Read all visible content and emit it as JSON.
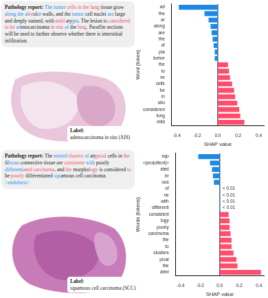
{
  "panels": [
    {
      "report": {
        "heading": "Pathology report:",
        "segments": [
          {
            "text": "The",
            "color": "blue"
          },
          {
            "text": " "
          },
          {
            "text": "tumor",
            "color": "blue"
          },
          {
            "text": " "
          },
          {
            "text": "cells",
            "color": "red"
          },
          {
            "text": " "
          },
          {
            "text": "in",
            "color": "red"
          },
          {
            "text": " "
          },
          {
            "text": "the",
            "color": "red"
          },
          {
            "text": " "
          },
          {
            "text": "lung",
            "color": "red"
          },
          {
            "text": " tissue grow "
          },
          {
            "text": "along",
            "color": "blue"
          },
          {
            "text": " "
          },
          {
            "text": "the",
            "color": "blue"
          },
          {
            "text": " "
          },
          {
            "text": "al",
            "color": "blue"
          },
          {
            "text": "ve",
            "color": "red"
          },
          {
            "text": "ol"
          },
          {
            "text": "ar",
            "color": "blue"
          },
          {
            "text": " walls, and the "
          },
          {
            "text": "tumor",
            "color": "blue"
          },
          {
            "text": " cell nuclei "
          },
          {
            "text": "are",
            "color": "blue"
          },
          {
            "text": " large and deeply stained, with "
          },
          {
            "text": "mild",
            "color": "red"
          },
          {
            "text": " aty"
          },
          {
            "text": "pia",
            "color": "blue"
          },
          {
            "text": ". The lesion is "
          },
          {
            "text": "considered",
            "color": "red"
          },
          {
            "text": " "
          },
          {
            "text": "to",
            "color": "red"
          },
          {
            "text": " "
          },
          {
            "text": "be",
            "color": "red"
          },
          {
            "text": " "
          },
          {
            "text": "ad",
            "color": "blue"
          },
          {
            "text": "enocarcinoma "
          },
          {
            "text": "in",
            "color": "red"
          },
          {
            "text": " "
          },
          {
            "text": "situ",
            "color": "red"
          },
          {
            "text": " "
          },
          {
            "text": "of",
            "color": "blue"
          },
          {
            "text": " the "
          },
          {
            "text": "lung",
            "color": "red"
          },
          {
            "text": ". Paraffin sections will be used to further observe whether there is interstitial infiltration."
          }
        ]
      },
      "label": {
        "heading": "Label:",
        "text": "adenocarcinoma in situ (AIS)"
      }
    },
    {
      "report": {
        "heading": "Pathology report:",
        "segments": [
          {
            "text": "The "
          },
          {
            "text": "ne",
            "color": "blue"
          },
          {
            "text": "sted",
            "color": "blue"
          },
          {
            "text": " "
          },
          {
            "text": "clusters",
            "color": "red"
          },
          {
            "text": " "
          },
          {
            "text": "of",
            "color": "blue"
          },
          {
            "text": " aty"
          },
          {
            "text": "pical",
            "color": "red"
          },
          {
            "text": " cells in "
          },
          {
            "text": "the",
            "color": "red"
          },
          {
            "text": " fi"
          },
          {
            "text": "br",
            "color": "blue"
          },
          {
            "text": "ous",
            "color": "blue"
          },
          {
            "text": " connective tissue are "
          },
          {
            "text": "consistent",
            "color": "red"
          },
          {
            "text": " "
          },
          {
            "text": "with",
            "color": "blue"
          },
          {
            "text": " poorly "
          },
          {
            "text": "differenti",
            "color": "blue"
          },
          {
            "text": "ated",
            "color": "red"
          },
          {
            "text": " "
          },
          {
            "text": "carcinoma",
            "color": "red"
          },
          {
            "text": ", and "
          },
          {
            "text": "the",
            "color": "red"
          },
          {
            "text": " morpho"
          },
          {
            "text": "logy",
            "color": "red"
          },
          {
            "text": " is considered "
          },
          {
            "text": "to",
            "color": "red"
          },
          {
            "text": " be "
          },
          {
            "text": "poorly",
            "color": "red"
          },
          {
            "text": " differentiated "
          },
          {
            "text": "squ",
            "color": "blue"
          },
          {
            "text": "amous cell carcinoma."
          },
          {
            "text": "<endoftext>",
            "color": "blue"
          }
        ]
      },
      "label": {
        "heading": "Label:",
        "text": "squamous cell carcinoma (SCC)"
      }
    }
  ],
  "chart_data": [
    {
      "type": "bar",
      "orientation": "horizontal",
      "xlabel": "SHAP value",
      "ylabel": "Word (token)",
      "grid": false,
      "categories": [
        "ad",
        "the",
        "ar",
        "along",
        "are",
        "the",
        "of",
        "pia",
        "tumor",
        "the",
        "to",
        "ve",
        "cells",
        "be",
        "in",
        "situ",
        "considered",
        "lung",
        "mild"
      ],
      "values": [
        -0.38,
        -0.13,
        -0.09,
        -0.07,
        -0.06,
        -0.05,
        -0.04,
        -0.03,
        -0.03,
        0.1,
        0.11,
        0.12,
        0.14,
        0.16,
        0.17,
        0.19,
        0.21,
        0.22,
        0.26
      ],
      "colors": [
        "#1e88e5",
        "#1e88e5",
        "#1e88e5",
        "#1e88e5",
        "#1e88e5",
        "#1e88e5",
        "#1e88e5",
        "#1e88e5",
        "#1e88e5",
        "#ff4d6d",
        "#ff4d6d",
        "#ff4d6d",
        "#ff4d6d",
        "#ff4d6d",
        "#ff4d6d",
        "#ff4d6d",
        "#ff4d6d",
        "#ff4d6d",
        "#ff4d6d"
      ],
      "xlim": [
        -0.45,
        0.45
      ],
      "xticks": [
        -0.4,
        -0.2,
        {
          "value": 0,
          "label": "0.0"
        },
        0.2,
        0.4
      ]
    },
    {
      "type": "bar",
      "orientation": "horizontal",
      "xlabel": "SHAP value",
      "ylabel": "Words (tokens)",
      "grid": false,
      "categories": [
        "squ",
        "<|endoftext|>",
        "sted",
        "br",
        "ous",
        "of",
        "ne",
        "with",
        "differenti",
        "consistent",
        "logy",
        "poorly",
        "carcinoma",
        "the",
        "to",
        "clusters",
        "pical",
        "the",
        "ated"
      ],
      "values": [
        -0.22,
        -0.1,
        -0.08,
        -0.07,
        -0.06,
        -0.005,
        -0.005,
        -0.005,
        -0.005,
        0.09,
        0.1,
        0.1,
        0.11,
        0.12,
        0.12,
        0.14,
        0.17,
        0.18,
        0.42
      ],
      "value_labels": [
        null,
        null,
        null,
        null,
        null,
        "< 0.01",
        "< 0.01",
        "< 0.01",
        "< 0.01",
        null,
        null,
        null,
        null,
        null,
        null,
        null,
        null,
        null,
        null
      ],
      "colors": [
        "#1e88e5",
        "#1e88e5",
        "#1e88e5",
        "#1e88e5",
        "#1e88e5",
        "#1e88e5",
        "#1e88e5",
        "#1e88e5",
        "#1e88e5",
        "#ff4d6d",
        "#ff4d6d",
        "#ff4d6d",
        "#ff4d6d",
        "#ff4d6d",
        "#ff4d6d",
        "#ff4d6d",
        "#ff4d6d",
        "#ff4d6d",
        "#ff4d6d"
      ],
      "xlim": [
        -0.45,
        0.45
      ],
      "xticks": [
        -0.4,
        -0.2,
        {
          "value": 0,
          "label": "0.0"
        },
        0.2,
        0.4
      ]
    }
  ]
}
